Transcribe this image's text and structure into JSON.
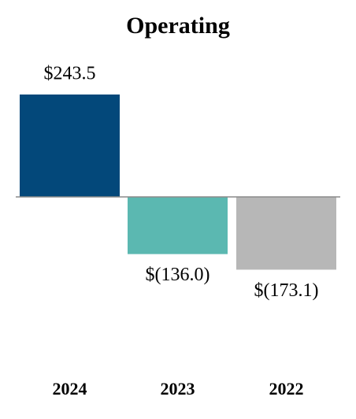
{
  "chart_data": {
    "type": "bar",
    "title": "Operating",
    "categories": [
      "2024",
      "2023",
      "2022"
    ],
    "values": [
      243.5,
      -136.0,
      -173.1
    ],
    "value_labels": [
      "$243.5",
      "$(136.0)",
      "$(173.1)"
    ],
    "colors": [
      "#03487a",
      "#5bb8b1",
      "#b7b7b7"
    ]
  }
}
